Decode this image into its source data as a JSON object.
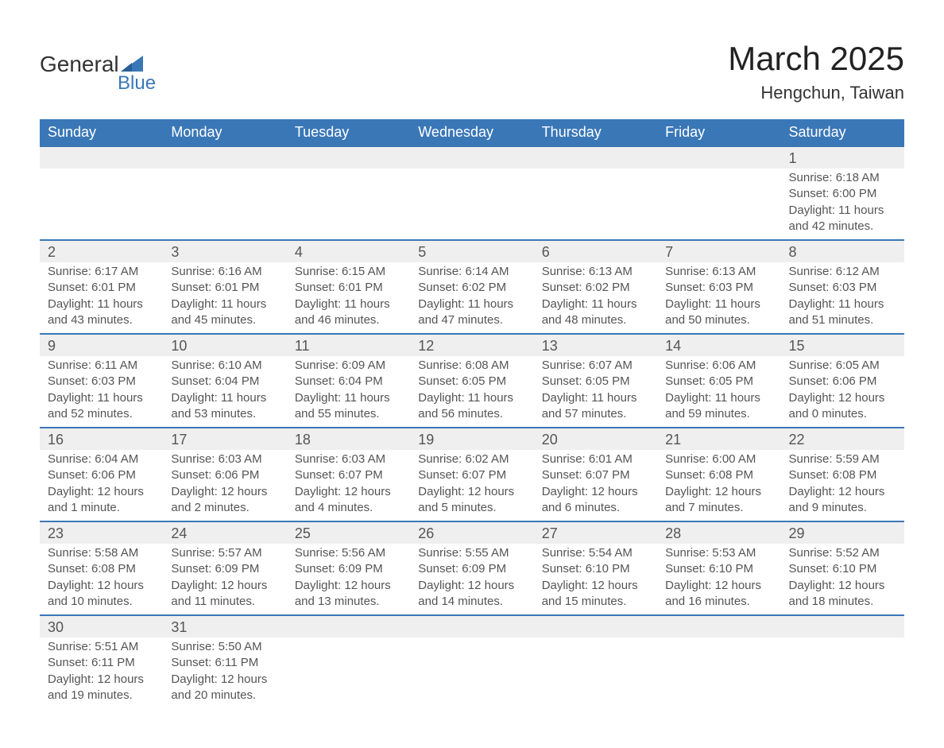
{
  "logo": {
    "word1": "General",
    "word2": "Blue",
    "text_color": "#333333",
    "accent_color": "#3a77b7"
  },
  "title": {
    "month": "March 2025",
    "location": "Hengchun, Taiwan",
    "month_fontsize": 42,
    "location_fontsize": 22
  },
  "colors": {
    "header_bg": "#3a77b7",
    "header_text": "#ffffff",
    "daynum_bg": "#efefef",
    "row_divider": "#3a77b7",
    "body_text": "#555555",
    "background": "#ffffff"
  },
  "typography": {
    "body_fontsize": 15,
    "daynum_fontsize": 18,
    "header_fontsize": 18,
    "font_family": "Arial"
  },
  "day_headers": [
    "Sunday",
    "Monday",
    "Tuesday",
    "Wednesday",
    "Thursday",
    "Friday",
    "Saturday"
  ],
  "labels": {
    "sunrise": "Sunrise:",
    "sunset": "Sunset:",
    "daylight": "Daylight:"
  },
  "weeks": [
    [
      null,
      null,
      null,
      null,
      null,
      null,
      {
        "n": "1",
        "sunrise": "6:18 AM",
        "sunset": "6:00 PM",
        "daylight": "11 hours and 42 minutes."
      }
    ],
    [
      {
        "n": "2",
        "sunrise": "6:17 AM",
        "sunset": "6:01 PM",
        "daylight": "11 hours and 43 minutes."
      },
      {
        "n": "3",
        "sunrise": "6:16 AM",
        "sunset": "6:01 PM",
        "daylight": "11 hours and 45 minutes."
      },
      {
        "n": "4",
        "sunrise": "6:15 AM",
        "sunset": "6:01 PM",
        "daylight": "11 hours and 46 minutes."
      },
      {
        "n": "5",
        "sunrise": "6:14 AM",
        "sunset": "6:02 PM",
        "daylight": "11 hours and 47 minutes."
      },
      {
        "n": "6",
        "sunrise": "6:13 AM",
        "sunset": "6:02 PM",
        "daylight": "11 hours and 48 minutes."
      },
      {
        "n": "7",
        "sunrise": "6:13 AM",
        "sunset": "6:03 PM",
        "daylight": "11 hours and 50 minutes."
      },
      {
        "n": "8",
        "sunrise": "6:12 AM",
        "sunset": "6:03 PM",
        "daylight": "11 hours and 51 minutes."
      }
    ],
    [
      {
        "n": "9",
        "sunrise": "6:11 AM",
        "sunset": "6:03 PM",
        "daylight": "11 hours and 52 minutes."
      },
      {
        "n": "10",
        "sunrise": "6:10 AM",
        "sunset": "6:04 PM",
        "daylight": "11 hours and 53 minutes."
      },
      {
        "n": "11",
        "sunrise": "6:09 AM",
        "sunset": "6:04 PM",
        "daylight": "11 hours and 55 minutes."
      },
      {
        "n": "12",
        "sunrise": "6:08 AM",
        "sunset": "6:05 PM",
        "daylight": "11 hours and 56 minutes."
      },
      {
        "n": "13",
        "sunrise": "6:07 AM",
        "sunset": "6:05 PM",
        "daylight": "11 hours and 57 minutes."
      },
      {
        "n": "14",
        "sunrise": "6:06 AM",
        "sunset": "6:05 PM",
        "daylight": "11 hours and 59 minutes."
      },
      {
        "n": "15",
        "sunrise": "6:05 AM",
        "sunset": "6:06 PM",
        "daylight": "12 hours and 0 minutes."
      }
    ],
    [
      {
        "n": "16",
        "sunrise": "6:04 AM",
        "sunset": "6:06 PM",
        "daylight": "12 hours and 1 minute."
      },
      {
        "n": "17",
        "sunrise": "6:03 AM",
        "sunset": "6:06 PM",
        "daylight": "12 hours and 2 minutes."
      },
      {
        "n": "18",
        "sunrise": "6:03 AM",
        "sunset": "6:07 PM",
        "daylight": "12 hours and 4 minutes."
      },
      {
        "n": "19",
        "sunrise": "6:02 AM",
        "sunset": "6:07 PM",
        "daylight": "12 hours and 5 minutes."
      },
      {
        "n": "20",
        "sunrise": "6:01 AM",
        "sunset": "6:07 PM",
        "daylight": "12 hours and 6 minutes."
      },
      {
        "n": "21",
        "sunrise": "6:00 AM",
        "sunset": "6:08 PM",
        "daylight": "12 hours and 7 minutes."
      },
      {
        "n": "22",
        "sunrise": "5:59 AM",
        "sunset": "6:08 PM",
        "daylight": "12 hours and 9 minutes."
      }
    ],
    [
      {
        "n": "23",
        "sunrise": "5:58 AM",
        "sunset": "6:08 PM",
        "daylight": "12 hours and 10 minutes."
      },
      {
        "n": "24",
        "sunrise": "5:57 AM",
        "sunset": "6:09 PM",
        "daylight": "12 hours and 11 minutes."
      },
      {
        "n": "25",
        "sunrise": "5:56 AM",
        "sunset": "6:09 PM",
        "daylight": "12 hours and 13 minutes."
      },
      {
        "n": "26",
        "sunrise": "5:55 AM",
        "sunset": "6:09 PM",
        "daylight": "12 hours and 14 minutes."
      },
      {
        "n": "27",
        "sunrise": "5:54 AM",
        "sunset": "6:10 PM",
        "daylight": "12 hours and 15 minutes."
      },
      {
        "n": "28",
        "sunrise": "5:53 AM",
        "sunset": "6:10 PM",
        "daylight": "12 hours and 16 minutes."
      },
      {
        "n": "29",
        "sunrise": "5:52 AM",
        "sunset": "6:10 PM",
        "daylight": "12 hours and 18 minutes."
      }
    ],
    [
      {
        "n": "30",
        "sunrise": "5:51 AM",
        "sunset": "6:11 PM",
        "daylight": "12 hours and 19 minutes."
      },
      {
        "n": "31",
        "sunrise": "5:50 AM",
        "sunset": "6:11 PM",
        "daylight": "12 hours and 20 minutes."
      },
      null,
      null,
      null,
      null,
      null
    ]
  ]
}
